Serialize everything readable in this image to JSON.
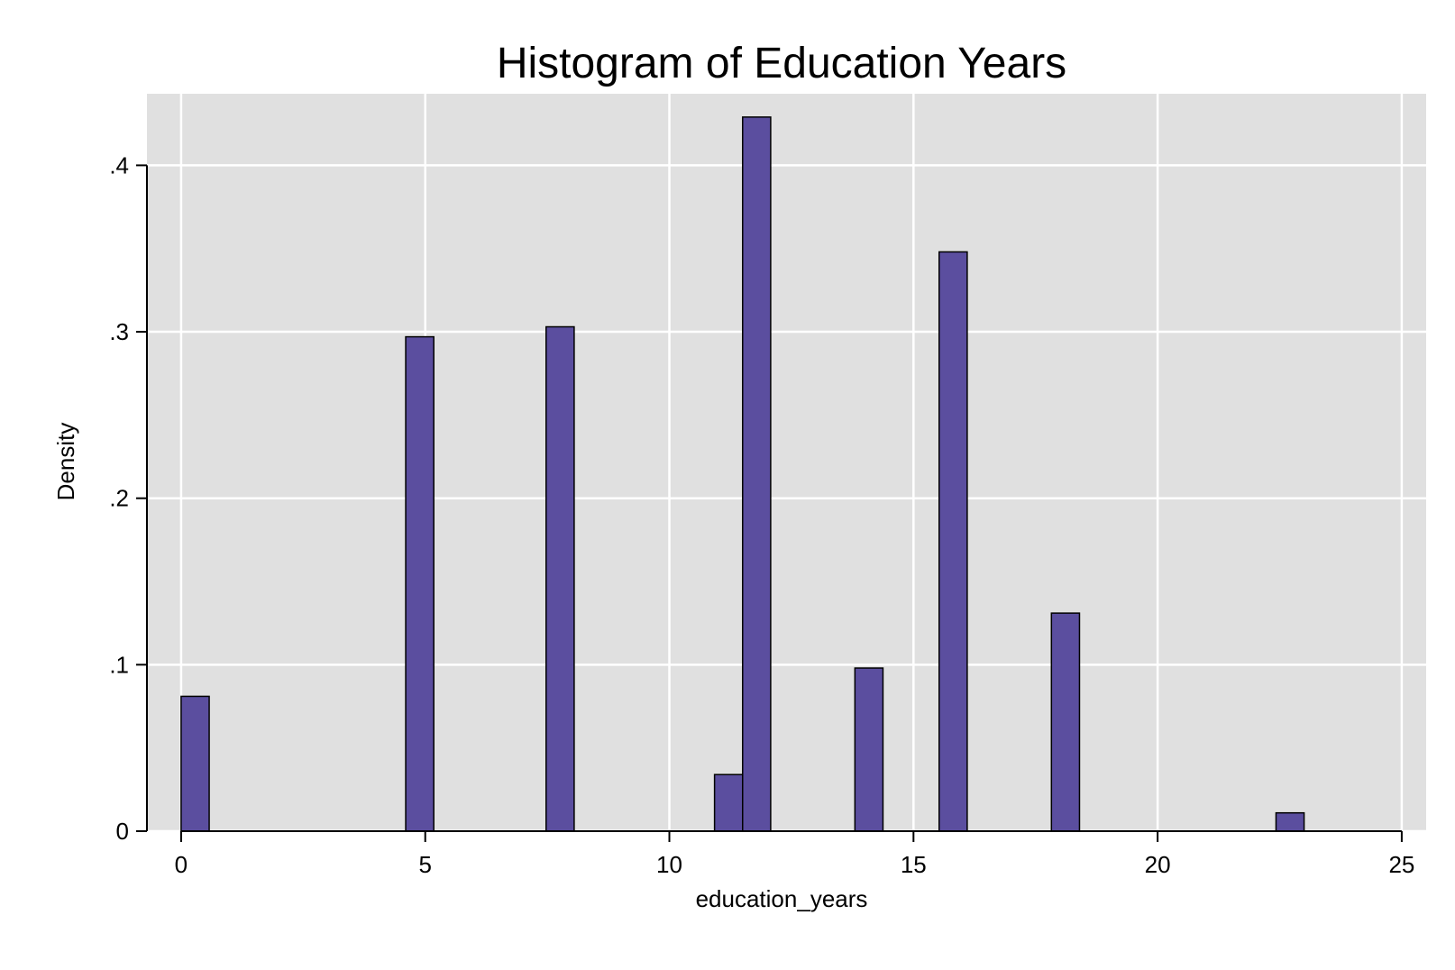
{
  "chart_data": {
    "type": "bar",
    "title": "Histogram of Education Years",
    "xlabel": "education_years",
    "ylabel": "Density",
    "xlim": [
      -0.7,
      25.5
    ],
    "ylim": [
      0,
      0.443
    ],
    "xticks": [
      {
        "value": 0,
        "label": "0"
      },
      {
        "value": 5,
        "label": "5"
      },
      {
        "value": 10,
        "label": "10"
      },
      {
        "value": 15,
        "label": "15"
      },
      {
        "value": 20,
        "label": "20"
      },
      {
        "value": 25,
        "label": "25"
      }
    ],
    "yticks": [
      {
        "value": 0,
        "label": "0"
      },
      {
        "value": 0.1,
        "label": ".1"
      },
      {
        "value": 0.2,
        "label": ".2"
      },
      {
        "value": 0.3,
        "label": ".3"
      },
      {
        "value": 0.4,
        "label": ".4"
      }
    ],
    "bin_width": 0.575,
    "bars": [
      {
        "x0": 0.0,
        "value": 0.081
      },
      {
        "x0": 4.6,
        "value": 0.297
      },
      {
        "x0": 7.475,
        "value": 0.303
      },
      {
        "x0": 10.925,
        "value": 0.034
      },
      {
        "x0": 11.5,
        "value": 0.429
      },
      {
        "x0": 13.8,
        "value": 0.098
      },
      {
        "x0": 15.525,
        "value": 0.348
      },
      {
        "x0": 17.825,
        "value": 0.131
      },
      {
        "x0": 22.425,
        "value": 0.011
      }
    ],
    "grid": true,
    "colors": {
      "plot_background": "#e0e0e0",
      "grid": "#ffffff",
      "bar_fill": "#5b4e9f",
      "bar_edge": "#000000",
      "axis": "#000000"
    }
  }
}
